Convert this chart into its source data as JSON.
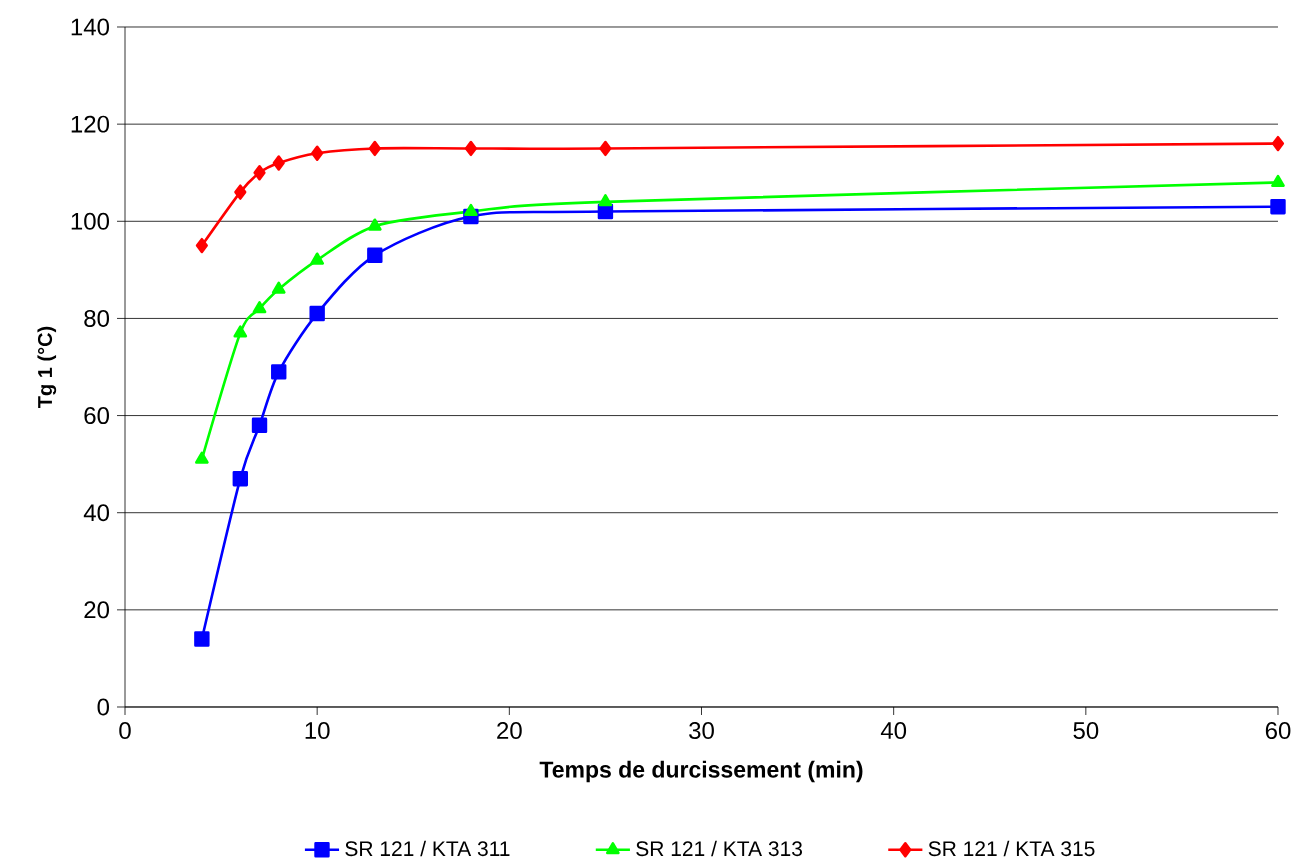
{
  "chart_data": {
    "type": "line",
    "xlabel": "Temps de durcissement (min)",
    "ylabel": "Tg 1 (°C)",
    "x": [
      4,
      6,
      7,
      8,
      10,
      13,
      18,
      25,
      60
    ],
    "series": [
      {
        "name": "SR 121 / KTA 311",
        "color": "#0000ff",
        "marker": "square",
        "values": [
          14,
          47,
          58,
          69,
          81,
          93,
          101,
          102,
          103
        ]
      },
      {
        "name": "SR 121 / KTA 313",
        "color": "#00ff00",
        "marker": "triangle",
        "values": [
          51,
          77,
          82,
          86,
          92,
          99,
          102,
          104,
          108
        ]
      },
      {
        "name": "SR 121 / KTA 315",
        "color": "#ff0000",
        "marker": "diamond",
        "values": [
          95,
          106,
          110,
          112,
          114,
          115,
          115,
          115,
          116
        ]
      }
    ],
    "xlim": [
      0,
      60
    ],
    "xticks": [
      0,
      10,
      20,
      30,
      40,
      50,
      60
    ],
    "ylim": [
      0,
      140
    ],
    "yticks": [
      0,
      20,
      40,
      60,
      80,
      100,
      120,
      140
    ],
    "grid": "y",
    "legend": "bottom"
  }
}
